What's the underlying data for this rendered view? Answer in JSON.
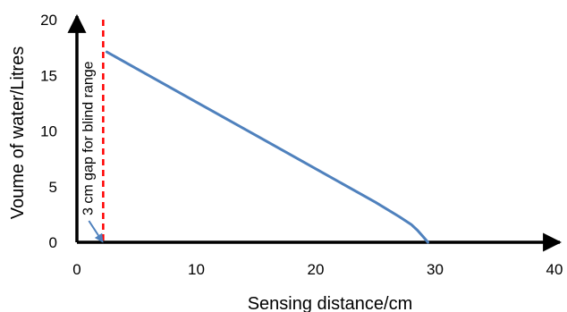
{
  "chart_data": {
    "type": "line",
    "xlabel": "Sensing distance/cm",
    "ylabel": "Voume of water/Litres",
    "xlim": [
      0,
      40
    ],
    "ylim": [
      0,
      20
    ],
    "x_ticks": [
      0,
      10,
      20,
      30,
      40
    ],
    "y_ticks": [
      0,
      5,
      10,
      15,
      20
    ],
    "grid": false,
    "series": [
      {
        "color": "#4f81bd",
        "x": [
          2.5,
          5,
          10,
          15,
          20,
          25,
          27,
          28,
          28.5,
          29,
          29.4
        ],
        "y": [
          17.1,
          15.6,
          12.6,
          9.6,
          6.6,
          3.6,
          2.3,
          1.6,
          1.1,
          0.5,
          0.0
        ]
      }
    ],
    "reference_line": {
      "x": 2.2,
      "color": "#ff0000",
      "style": "dashed"
    },
    "annotation": {
      "text": "3 cm gap for blind range",
      "arrow_to": {
        "x": 2.2,
        "y": 0
      }
    }
  }
}
